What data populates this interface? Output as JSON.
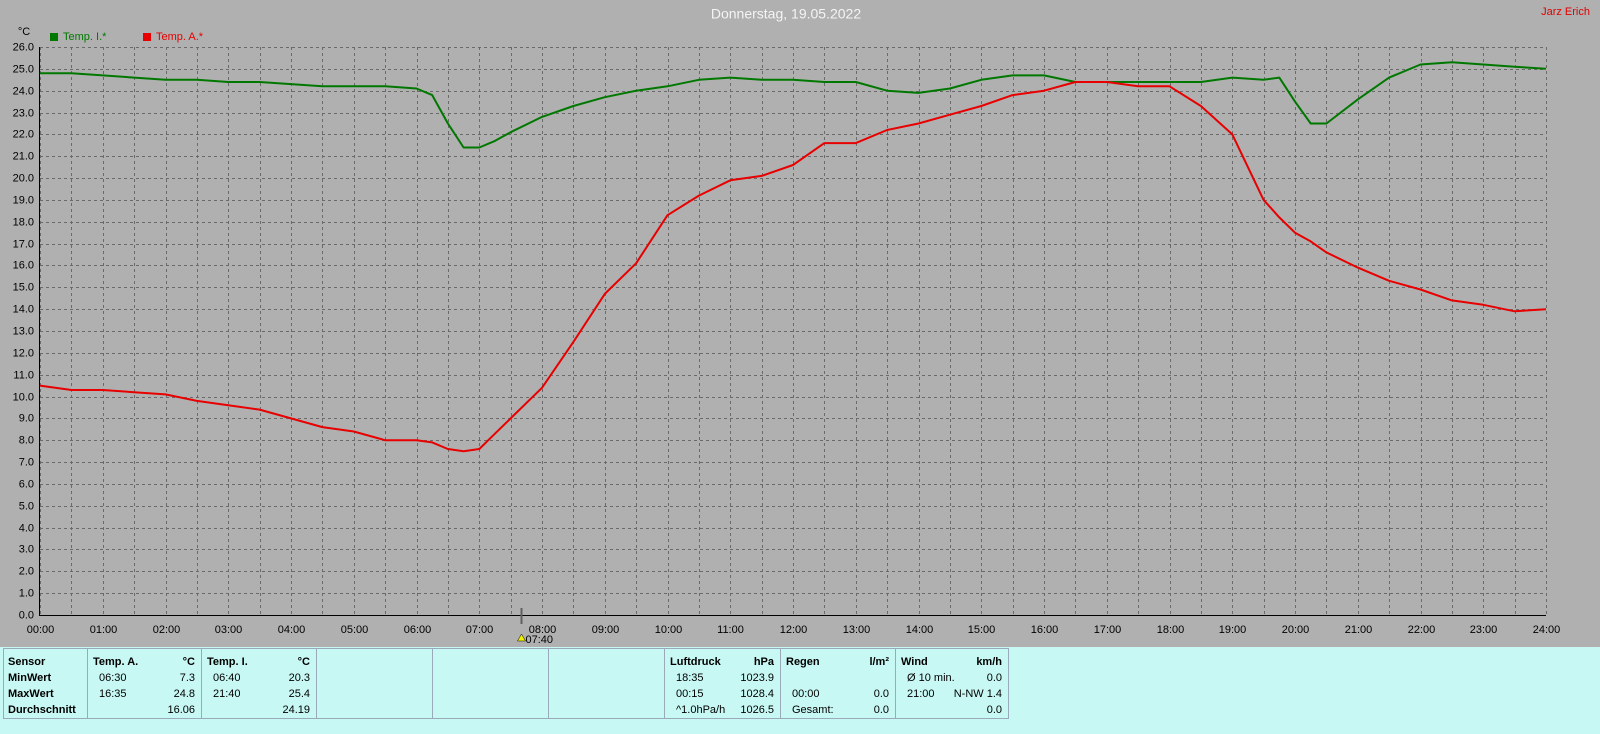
{
  "chart_data": {
    "type": "line",
    "title": "Donnerstag, 19.05.2022",
    "author": "Jarz Erich",
    "y_label": "°C",
    "x": [
      0,
      0.5,
      1,
      1.5,
      2,
      2.5,
      3,
      3.5,
      4,
      4.5,
      5,
      5.5,
      6,
      6.25,
      6.5,
      6.75,
      7,
      7.25,
      7.5,
      8,
      8.5,
      9,
      9.5,
      10,
      10.5,
      11,
      11.5,
      12,
      12.5,
      13,
      13.5,
      14,
      14.5,
      15,
      15.5,
      16,
      16.5,
      17,
      17.5,
      18,
      18.5,
      19,
      19.5,
      19.75,
      20,
      20.25,
      20.5,
      21,
      21.5,
      22,
      22.5,
      23,
      23.5,
      24
    ],
    "series": [
      {
        "name": "Temp. I.*",
        "color": "#007800",
        "values": [
          24.8,
          24.8,
          24.7,
          24.6,
          24.5,
          24.5,
          24.4,
          24.4,
          24.3,
          24.2,
          24.2,
          24.2,
          24.1,
          23.8,
          22.5,
          21.4,
          21.4,
          21.7,
          22.1,
          22.8,
          23.3,
          23.7,
          24.0,
          24.2,
          24.5,
          24.6,
          24.5,
          24.5,
          24.4,
          24.4,
          24.0,
          23.9,
          24.1,
          24.5,
          24.7,
          24.7,
          24.4,
          24.4,
          24.4,
          24.4,
          24.4,
          24.6,
          24.5,
          24.6,
          23.5,
          22.5,
          22.5,
          23.6,
          24.6,
          25.2,
          25.3,
          25.2,
          25.1,
          25.0
        ]
      },
      {
        "name": "Temp. A.*",
        "color": "#e80000",
        "values": [
          10.5,
          10.3,
          10.3,
          10.2,
          10.1,
          9.8,
          9.6,
          9.4,
          9.0,
          8.6,
          8.4,
          8.0,
          8.0,
          7.9,
          7.6,
          7.5,
          7.6,
          8.3,
          9.0,
          10.4,
          12.5,
          14.7,
          16.1,
          18.3,
          19.2,
          19.9,
          20.1,
          20.6,
          21.6,
          21.6,
          22.2,
          22.5,
          22.9,
          23.3,
          23.8,
          24.0,
          24.4,
          24.4,
          24.2,
          24.2,
          23.3,
          22.0,
          19.0,
          18.2,
          17.5,
          17.1,
          16.6,
          15.9,
          15.3,
          14.9,
          14.4,
          14.2,
          13.9,
          14.0
        ]
      }
    ],
    "xlim": [
      0,
      24
    ],
    "ylim": [
      0,
      26
    ],
    "xticks": [
      {
        "value": 0,
        "label": "00:00"
      },
      {
        "value": 1,
        "label": "01:00"
      },
      {
        "value": 2,
        "label": "02:00"
      },
      {
        "value": 3,
        "label": "03:00"
      },
      {
        "value": 4,
        "label": "04:00"
      },
      {
        "value": 5,
        "label": "05:00"
      },
      {
        "value": 6,
        "label": "06:00"
      },
      {
        "value": 7,
        "label": "07:00"
      },
      {
        "value": 8,
        "label": "08:00"
      },
      {
        "value": 9,
        "label": "09:00"
      },
      {
        "value": 10,
        "label": "10:00"
      },
      {
        "value": 11,
        "label": "11:00"
      },
      {
        "value": 12,
        "label": "12:00"
      },
      {
        "value": 13,
        "label": "13:00"
      },
      {
        "value": 14,
        "label": "14:00"
      },
      {
        "value": 15,
        "label": "15:00"
      },
      {
        "value": 16,
        "label": "16:00"
      },
      {
        "value": 17,
        "label": "17:00"
      },
      {
        "value": 18,
        "label": "18:00"
      },
      {
        "value": 19,
        "label": "19:00"
      },
      {
        "value": 20,
        "label": "20:00"
      },
      {
        "value": 21,
        "label": "21:00"
      },
      {
        "value": 22,
        "label": "22:00"
      },
      {
        "value": 23,
        "label": "23:00"
      },
      {
        "value": 24,
        "label": "24:00"
      }
    ],
    "xgrid_minor": [
      0.5,
      1.5,
      2.5,
      3.5,
      4.5,
      5.5,
      6.5,
      7.5,
      8.5,
      9.5,
      10.5,
      11.5,
      12.5,
      13.5,
      14.5,
      15.5,
      16.5,
      17.5,
      18.5,
      19.5,
      20.5,
      21.5,
      22.5,
      23.5
    ],
    "yticks": [
      {
        "value": 0,
        "label": "0.0"
      },
      {
        "value": 1,
        "label": "1.0"
      },
      {
        "value": 2,
        "label": "2.0"
      },
      {
        "value": 3,
        "label": "3.0"
      },
      {
        "value": 4,
        "label": "4.0"
      },
      {
        "value": 5,
        "label": "5.0"
      },
      {
        "value": 6,
        "label": "6.0"
      },
      {
        "value": 7,
        "label": "7.0"
      },
      {
        "value": 8,
        "label": "8.0"
      },
      {
        "value": 9,
        "label": "9.0"
      },
      {
        "value": 10,
        "label": "10.0"
      },
      {
        "value": 11,
        "label": "11.0"
      },
      {
        "value": 12,
        "label": "12.0"
      },
      {
        "value": 13,
        "label": "13.0"
      },
      {
        "value": 14,
        "label": "14.0"
      },
      {
        "value": 15,
        "label": "15.0"
      },
      {
        "value": 16,
        "label": "16.0"
      },
      {
        "value": 17,
        "label": "17.0"
      },
      {
        "value": 18,
        "label": "18.0"
      },
      {
        "value": 19,
        "label": "19.0"
      },
      {
        "value": 20,
        "label": "20.0"
      },
      {
        "value": 21,
        "label": "21.0"
      },
      {
        "value": 22,
        "label": "22.0"
      },
      {
        "value": 23,
        "label": "23.0"
      },
      {
        "value": 24,
        "label": "24.0"
      },
      {
        "value": 25,
        "label": "25.0"
      },
      {
        "value": 26,
        "label": "26.0"
      }
    ],
    "marker": {
      "value": 7.6667,
      "label": "07:40"
    },
    "grid": true
  },
  "stats": {
    "sensor": {
      "header": "Sensor",
      "rows": [
        "MinWert",
        "MaxWert",
        "Durchschnitt"
      ]
    },
    "groups": [
      {
        "header": "Temp. A.",
        "unit": "°C",
        "rows": [
          [
            "06:30",
            "7.3"
          ],
          [
            "16:35",
            "24.8"
          ],
          [
            "16.06"
          ]
        ]
      },
      {
        "header": "Temp. I.",
        "unit": "°C",
        "rows": [
          [
            "06:40",
            "20.3"
          ],
          [
            "21:40",
            "25.4"
          ],
          [
            "24.19"
          ]
        ]
      },
      {
        "header": "Luftdruck",
        "unit": "hPa",
        "rows": [
          [
            "18:35",
            "1023.9"
          ],
          [
            "00:15",
            "1028.4"
          ],
          [
            "^1.0hPa/h",
            "1026.5"
          ]
        ]
      },
      {
        "header": "Regen",
        "unit": "l/m²",
        "rows": [
          [],
          [
            "00:00",
            "0.0"
          ],
          [
            "Gesamt:",
            "0.0"
          ]
        ]
      },
      {
        "header": "Wind",
        "unit": "km/h",
        "rows": [
          [
            "Ø 10 min.",
            "0.0"
          ],
          [
            "21:00",
            "N-NW 1.4"
          ],
          [
            "0.0"
          ]
        ]
      }
    ]
  }
}
